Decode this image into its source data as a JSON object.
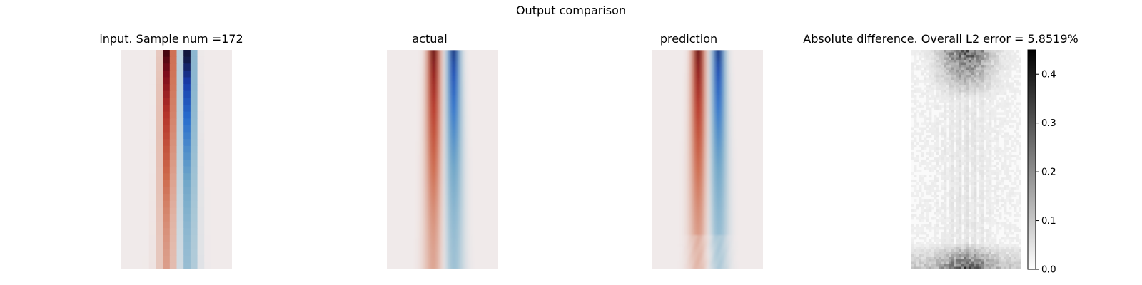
{
  "figure": {
    "suptitle": "Output comparison"
  },
  "chart_data": [
    {
      "type": "heatmap",
      "title": "input. Sample num =172",
      "colormap": "diverging red-blue (dark red / orange / white / light blue / dark blue)",
      "description_of_field": "coarse 16x32 grid; a positive (red) column and a negative (blue) column side by side, strongest at the top and fading downward",
      "axes": "off"
    },
    {
      "type": "heatmap",
      "title": "actual",
      "colormap": "diverging red-blue",
      "description_of_field": "smooth field; red plume left of centre, blue plume right of centre, strongest at the top",
      "axes": "off"
    },
    {
      "type": "heatmap",
      "title": "prediction",
      "colormap": "diverging red-blue",
      "description_of_field": "smooth field closely matching 'actual', with slight noise near the bottom",
      "axes": "off"
    },
    {
      "type": "heatmap",
      "title": "Absolute difference. Overall L2 error = 5.8519%",
      "colormap": "greys (white = 0, black = max)",
      "description_of_field": "mostly near-white; darker speckled error near the top centre and in a band along the bottom",
      "axes": "off",
      "colorbar": {
        "range": [
          0.0,
          0.45
        ],
        "ticks": [
          0.0,
          0.1,
          0.2,
          0.3,
          0.4
        ],
        "tick_labels": [
          "0.0",
          "0.1",
          "0.2",
          "0.3",
          "0.4"
        ]
      }
    }
  ]
}
